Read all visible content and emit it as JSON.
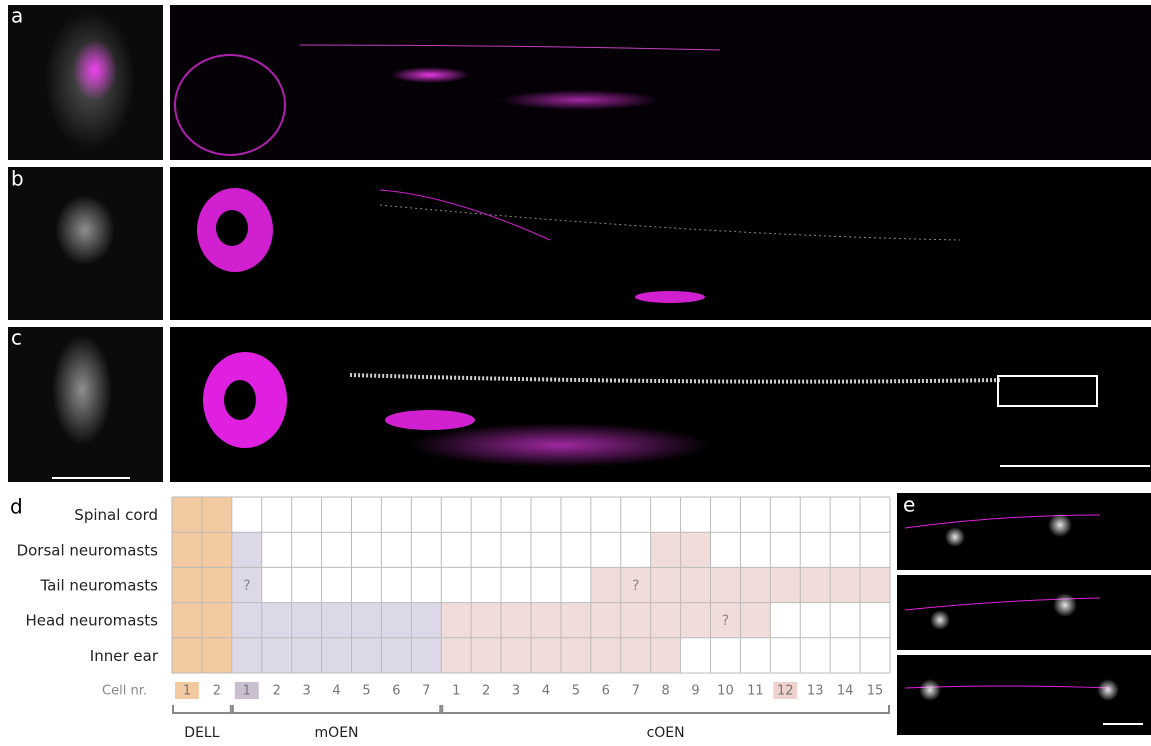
{
  "panels": {
    "a": "a",
    "b": "b",
    "c": "c",
    "d": "d",
    "e": "e"
  },
  "table": {
    "x_title": "Cell nr.",
    "groups": [
      {
        "name": "DELL",
        "cells": [
          "1",
          "2"
        ],
        "highlight": "1"
      },
      {
        "name": "mOEN",
        "cells": [
          "1",
          "2",
          "3",
          "4",
          "5",
          "6",
          "7"
        ],
        "highlight": "1"
      },
      {
        "name": "cOEN",
        "cells": [
          "1",
          "2",
          "3",
          "4",
          "5",
          "6",
          "7",
          "8",
          "9",
          "10",
          "11",
          "12",
          "13",
          "14",
          "15"
        ],
        "highlight": "12"
      }
    ],
    "rows": [
      {
        "label": "Spinal cord",
        "fills": [
          {
            "group": "DELL",
            "from": 1,
            "to": 2
          }
        ]
      },
      {
        "label": "Dorsal neuromasts",
        "fills": [
          {
            "group": "DELL",
            "from": 1,
            "to": 2
          },
          {
            "group": "mOEN",
            "from": 1,
            "to": 1
          },
          {
            "group": "cOEN",
            "from": 8,
            "to": 9
          }
        ]
      },
      {
        "label": "Tail neuromasts",
        "fills": [
          {
            "group": "DELL",
            "from": 1,
            "to": 2
          },
          {
            "group": "mOEN",
            "from": 1,
            "to": 1
          },
          {
            "group": "cOEN",
            "from": 6,
            "to": 15
          }
        ],
        "marks": [
          {
            "text": "?",
            "group": "mOEN",
            "cell": 1
          },
          {
            "text": "?",
            "group": "cOEN",
            "cell": 7
          }
        ]
      },
      {
        "label": "Head neuromasts",
        "fills": [
          {
            "group": "DELL",
            "from": 1,
            "to": 2
          },
          {
            "group": "mOEN",
            "from": 1,
            "to": 7
          },
          {
            "group": "cOEN",
            "from": 1,
            "to": 11
          }
        ],
        "marks": [
          {
            "text": "?",
            "group": "cOEN",
            "cell": 10
          }
        ]
      },
      {
        "label": "Inner ear",
        "fills": [
          {
            "group": "DELL",
            "from": 1,
            "to": 2
          },
          {
            "group": "mOEN",
            "from": 1,
            "to": 7
          },
          {
            "group": "cOEN",
            "from": 1,
            "to": 8
          }
        ]
      }
    ]
  }
}
